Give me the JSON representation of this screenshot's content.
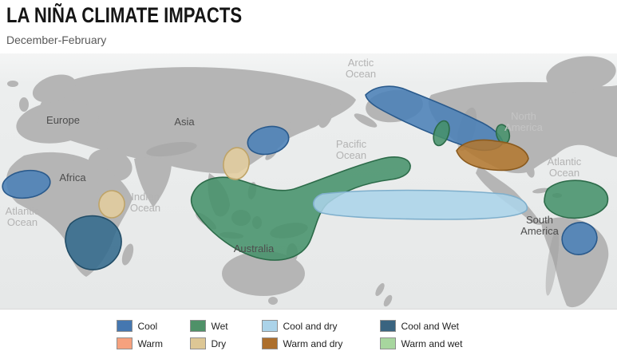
{
  "header": {
    "title": "LA NIÑA CLIMATE IMPACTS",
    "subtitle": "December-February"
  },
  "map": {
    "labels": {
      "arctic_ocean": [
        "Arctic",
        "Ocean"
      ],
      "pacific_ocean": [
        "Pacific",
        "Ocean"
      ],
      "atlantic_ocean_west": [
        "Atlantic",
        "Ocean"
      ],
      "indian_ocean": [
        "Indian",
        "Ocean"
      ],
      "atlantic_ocean_east": [
        "Atlantic",
        "Ocean"
      ],
      "europe": [
        "Europe"
      ],
      "asia": [
        "Asia"
      ],
      "africa": [
        "Africa"
      ],
      "australia": [
        "Australia"
      ],
      "north_america": [
        "North",
        "America"
      ],
      "south_america": [
        "South",
        "America"
      ]
    },
    "region_styles": {
      "cool": {
        "fill": "#4a7fb7",
        "stroke": "#2a5a8c"
      },
      "wet": {
        "fill": "#45916a",
        "stroke": "#2c6b49"
      },
      "cool_dry": {
        "fill": "#abd3e9",
        "stroke": "#7fafcc"
      },
      "cool_wet": {
        "fill": "#336a8c",
        "stroke": "#224d67"
      },
      "dry": {
        "fill": "#e2cd9d",
        "stroke": "#bfa468"
      },
      "warm_dry": {
        "fill": "#b2782f",
        "stroke": "#8a5a1e"
      }
    },
    "regions": [
      {
        "name": "northwest-africa",
        "category": "cool"
      },
      {
        "name": "east-africa",
        "category": "dry"
      },
      {
        "name": "southern-africa",
        "category": "cool_wet"
      },
      {
        "name": "east-asia",
        "category": "cool"
      },
      {
        "name": "eastern-china",
        "category": "dry"
      },
      {
        "name": "indonesia-western-pacific",
        "category": "wet"
      },
      {
        "name": "central-pacific",
        "category": "cool_dry"
      },
      {
        "name": "alaska-western-canada",
        "category": "cool"
      },
      {
        "name": "pacific-northwest",
        "category": "wet"
      },
      {
        "name": "ohio-valley",
        "category": "wet"
      },
      {
        "name": "southern-us",
        "category": "warm_dry"
      },
      {
        "name": "northern-south-america",
        "category": "wet"
      },
      {
        "name": "southeastern-south-america",
        "category": "cool"
      }
    ]
  },
  "legend": {
    "items": [
      {
        "label": "Cool",
        "color": "#4577b0"
      },
      {
        "label": "Wet",
        "color": "#4f9168"
      },
      {
        "label": "Cool and dry",
        "color": "#abd3e9"
      },
      {
        "label": "Cool and Wet",
        "color": "#3a6480"
      },
      {
        "label": "Warm",
        "color": "#f6a17e"
      },
      {
        "label": "Dry",
        "color": "#ddc795"
      },
      {
        "label": "Warm and dry",
        "color": "#ad6f2c"
      },
      {
        "label": "Warm and wet",
        "color": "#a7d69e"
      }
    ]
  }
}
